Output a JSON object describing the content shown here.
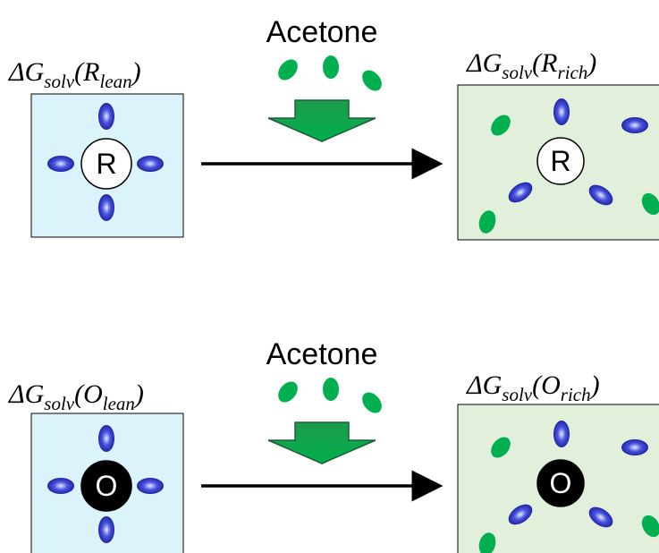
{
  "rows": [
    {
      "reagent": "Acetone",
      "center": "R",
      "left_label": {
        "main": "ΔG",
        "sub": "solv",
        "open": "(R",
        "inner_sub": "lean",
        "close": ")"
      },
      "right_label": {
        "main": "ΔG",
        "sub": "solv",
        "open": "(R",
        "inner_sub": "rich",
        "close": ")"
      }
    },
    {
      "reagent": "Acetone",
      "center": "O",
      "left_label": {
        "main": "ΔG",
        "sub": "solv",
        "open": "(O",
        "inner_sub": "lean",
        "close": ")"
      },
      "right_label": {
        "main": "ΔG",
        "sub": "solv",
        "open": "(O",
        "inner_sub": "rich",
        "close": ")"
      }
    }
  ]
}
